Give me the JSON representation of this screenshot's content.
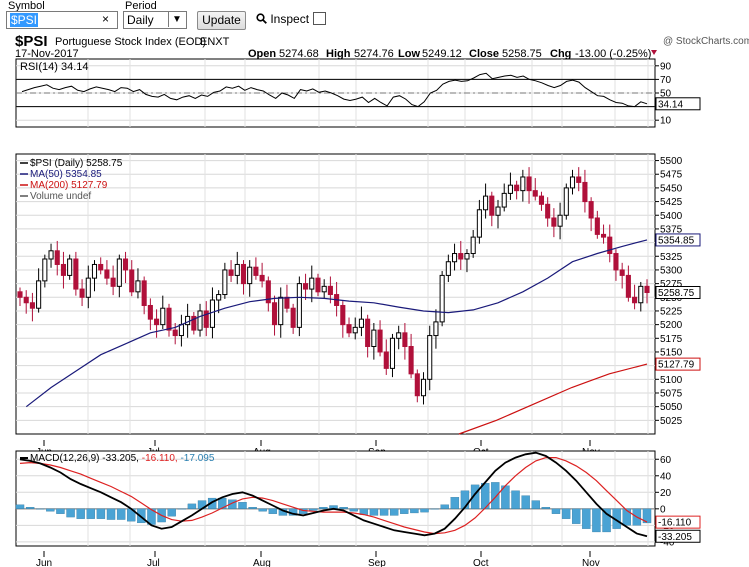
{
  "toolbar": {
    "symbol_label": "Symbol",
    "symbol_value": "$PSI",
    "clear_glyph": "×",
    "period_label": "Period",
    "period_value": "Daily",
    "update_label": "Update",
    "inspect_label": "Inspect",
    "inspect_checked": false,
    "icons": [
      "search-icon",
      "chevron-down-icon",
      "close-icon"
    ]
  },
  "chart_data": {
    "type": "candlestick",
    "symbol": "$PSI",
    "name": "Portuguese Stock Index (EOD)",
    "exchange": "ENXT",
    "date": "17-Nov-2017",
    "open_label": "Open",
    "open": "5274.68",
    "high_label": "High",
    "high": "5274.76",
    "low_label": "Low",
    "low": "5249.12",
    "close_label": "Close",
    "close": "5258.75",
    "chg_label": "Chg",
    "chg": "-13.00 (-0.25%)",
    "watermark": "@ StockCharts.com",
    "colors": {
      "up": "#000000",
      "down": "#b0103a",
      "ma50": "#1a1a7a",
      "ma200": "#cc1111",
      "macd_hist": "#4aa3d4",
      "signal": "#dd2222"
    },
    "price_panel": {
      "legend": [
        "$PSI (Daily) 5258.75",
        "MA(50) 5354.85",
        "MA(200) 5127.79",
        "Volume undef"
      ],
      "ylim": [
        5000,
        5512
      ],
      "yticks": [
        5500,
        5475,
        5450,
        5425,
        5400,
        5375,
        5350,
        5325,
        5300,
        5275,
        5250,
        5225,
        5200,
        5175,
        5150,
        5125,
        5100,
        5075,
        5050,
        5025
      ],
      "tags": [
        "5354.85",
        "5258.75",
        "5127.79"
      ],
      "close_series": [
        5250,
        5240,
        5230,
        5280,
        5320,
        5335,
        5310,
        5290,
        5320,
        5265,
        5250,
        5285,
        5310,
        5300,
        5285,
        5270,
        5320,
        5300,
        5260,
        5280,
        5235,
        5210,
        5200,
        5230,
        5190,
        5180,
        5200,
        5215,
        5190,
        5225,
        5195,
        5245,
        5255,
        5300,
        5290,
        5310,
        5275,
        5305,
        5290,
        5280,
        5240,
        5200,
        5250,
        5230,
        5195,
        5275,
        5265,
        5285,
        5260,
        5270,
        5255,
        5235,
        5200,
        5185,
        5195,
        5210,
        5160,
        5190,
        5150,
        5120,
        5175,
        5185,
        5160,
        5110,
        5070,
        5100,
        5180,
        5205,
        5290,
        5315,
        5330,
        5320,
        5330,
        5360,
        5410,
        5435,
        5400,
        5415,
        5440,
        5455,
        5445,
        5470,
        5445,
        5435,
        5420,
        5395,
        5380,
        5400,
        5450,
        5470,
        5460,
        5425,
        5395,
        5365,
        5360,
        5330,
        5300,
        5290,
        5250,
        5240,
        5270,
        5258.75
      ],
      "ma50": [
        5050,
        5085,
        5115,
        5145,
        5165,
        5185,
        5195,
        5215,
        5230,
        5242,
        5248,
        5250,
        5248,
        5243,
        5240,
        5232,
        5225,
        5222,
        5227,
        5240,
        5260,
        5285,
        5315,
        5330,
        5343,
        5354.85
      ],
      "ma200": [
        5000,
        5025,
        5055,
        5085,
        5110,
        5127.79
      ]
    },
    "rsi_panel": {
      "label": "RSI(14) 34.14",
      "ylim": [
        0,
        100
      ],
      "yticks": [
        90,
        70,
        50,
        30,
        10
      ],
      "tag": "34.14",
      "values": [
        52,
        55,
        58,
        60,
        62,
        57,
        55,
        58,
        60,
        54,
        52,
        56,
        59,
        57,
        55,
        52,
        58,
        57,
        52,
        55,
        48,
        45,
        44,
        48,
        42,
        40,
        44,
        46,
        42,
        47,
        45,
        51,
        53,
        59,
        57,
        60,
        54,
        58,
        55,
        53,
        47,
        42,
        50,
        47,
        42,
        55,
        53,
        56,
        51,
        53,
        50,
        46,
        41,
        39,
        41,
        44,
        36,
        42,
        36,
        31,
        44,
        46,
        41,
        33,
        30,
        37,
        50,
        54,
        63,
        67,
        69,
        67,
        68,
        72,
        77,
        79,
        71,
        73,
        75,
        76,
        73,
        75,
        70,
        68,
        65,
        61,
        58,
        61,
        67,
        69,
        66,
        58,
        52,
        46,
        45,
        40,
        36,
        35,
        31,
        30,
        37,
        34.14
      ]
    },
    "macd_panel": {
      "label_prefix": "MACD(12,26,9)",
      "label_macd": "-33.205",
      "label_signal": "-16.110",
      "label_hist": "-17.095",
      "ylim": [
        -45,
        70
      ],
      "yticks": [
        60,
        40,
        20,
        0,
        -20,
        -40
      ],
      "tags": [
        "-16.110",
        "-33.205"
      ],
      "macd": [
        60,
        58,
        55,
        50,
        44,
        36,
        30,
        25,
        20,
        14,
        8,
        0,
        -10,
        -20,
        -24,
        -22,
        -15,
        -8,
        0,
        8,
        14,
        18,
        20,
        16,
        10,
        4,
        -2,
        -6,
        -8,
        -5,
        -2,
        0,
        -2,
        -8,
        -14,
        -18,
        -22,
        -26,
        -28,
        -30,
        -32,
        -30,
        -24,
        -12,
        2,
        18,
        32,
        46,
        56,
        62,
        66,
        68,
        64,
        56,
        46,
        34,
        20,
        6,
        -6,
        -14,
        -22,
        -30,
        -33.205
      ],
      "signal": [
        55,
        56,
        55,
        53,
        50,
        46,
        42,
        37,
        32,
        27,
        21,
        15,
        7,
        -1,
        -8,
        -13,
        -15,
        -14,
        -10,
        -5,
        1,
        7,
        12,
        14,
        13,
        10,
        6,
        2,
        -2,
        -3,
        -4,
        -4,
        -4,
        -5,
        -7,
        -10,
        -14,
        -18,
        -22,
        -25,
        -28,
        -30,
        -29,
        -26,
        -20,
        -11,
        1,
        14,
        28,
        40,
        50,
        58,
        62,
        62,
        58,
        52,
        44,
        34,
        22,
        10,
        -2,
        -10,
        -16.11
      ]
    },
    "x_labels": [
      "Jun",
      "Jul",
      "Aug",
      "Sep",
      "Oct",
      "Nov"
    ]
  }
}
